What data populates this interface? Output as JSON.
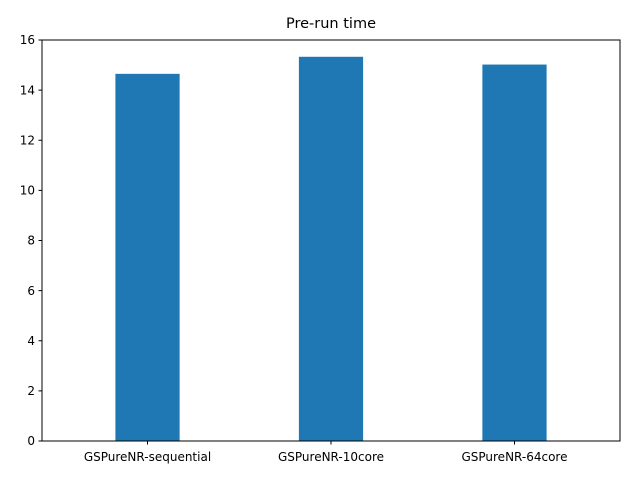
{
  "chart_data": {
    "type": "bar",
    "title": "Pre-run time",
    "xlabel": "",
    "ylabel": "",
    "categories": [
      "GSPureNR-sequential",
      "GSPureNR-10core",
      "GSPureNR-64core"
    ],
    "values": [
      14.65,
      15.33,
      15.02
    ],
    "ylim": [
      0,
      16
    ],
    "yticks": [
      0,
      2,
      4,
      6,
      8,
      10,
      12,
      14,
      16
    ],
    "grid": false,
    "bar_color": "#1f77b4"
  }
}
